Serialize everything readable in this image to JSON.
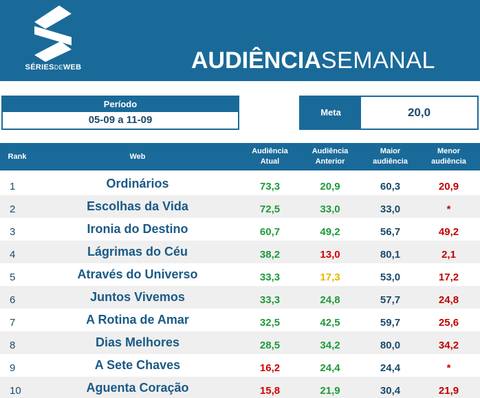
{
  "header": {
    "logo_text_1": "SÉRIES",
    "logo_text_2": "DE",
    "logo_text_3": "WEB",
    "title_bold": "AUDIÊNCIA",
    "title_light": "SEMANAL",
    "background_color": "#1a6a99"
  },
  "periodo": {
    "label": "Período",
    "value": "05-09 a 11-09"
  },
  "meta": {
    "label": "Meta",
    "value": "20,0"
  },
  "table": {
    "columns": {
      "rank": "Rank",
      "web": "Web",
      "atual_1": "Audiência",
      "atual_2": "Atual",
      "anterior_1": "Audiência",
      "anterior_2": "Anterior",
      "maior_1": "Maior",
      "maior_2": "audiência",
      "menor_1": "Menor",
      "menor_2": "audiência"
    },
    "rows": [
      {
        "rank": "1",
        "web": "Ordinários",
        "atual": "73,3",
        "atual_color": "green",
        "anterior": "20,9",
        "anterior_color": "green",
        "maior": "60,3",
        "menor": "20,9"
      },
      {
        "rank": "2",
        "web": "Escolhas da Vida",
        "atual": "72,5",
        "atual_color": "green",
        "anterior": "33,0",
        "anterior_color": "green",
        "maior": "33,0",
        "menor": "*"
      },
      {
        "rank": "3",
        "web": "Ironia do Destino",
        "atual": "60,7",
        "atual_color": "green",
        "anterior": "49,2",
        "anterior_color": "green",
        "maior": "56,7",
        "menor": "49,2"
      },
      {
        "rank": "4",
        "web": "Lágrimas do Céu",
        "atual": "38,2",
        "atual_color": "green",
        "anterior": "13,0",
        "anterior_color": "red",
        "maior": "80,1",
        "menor": "2,1"
      },
      {
        "rank": "5",
        "web": "Através do Universo",
        "atual": "33,3",
        "atual_color": "green",
        "anterior": "17,3",
        "anterior_color": "yellow",
        "maior": "53,0",
        "menor": "17,2"
      },
      {
        "rank": "6",
        "web": "Juntos Vivemos",
        "atual": "33,3",
        "atual_color": "green",
        "anterior": "24,8",
        "anterior_color": "green",
        "maior": "57,7",
        "menor": "24,8"
      },
      {
        "rank": "7",
        "web": "A Rotina de Amar",
        "atual": "32,5",
        "atual_color": "green",
        "anterior": "42,5",
        "anterior_color": "green",
        "maior": "59,7",
        "menor": "25,6"
      },
      {
        "rank": "8",
        "web": "Dias Melhores",
        "atual": "28,5",
        "atual_color": "green",
        "anterior": "34,2",
        "anterior_color": "green",
        "maior": "80,0",
        "menor": "34,2"
      },
      {
        "rank": "9",
        "web": "A Sete Chaves",
        "atual": "16,2",
        "atual_color": "red",
        "anterior": "24,4",
        "anterior_color": "green",
        "maior": "24,4",
        "menor": "*"
      },
      {
        "rank": "10",
        "web": "Aguenta Coração",
        "atual": "15,8",
        "atual_color": "red",
        "anterior": "21,9",
        "anterior_color": "green",
        "maior": "30,4",
        "menor": "21,9"
      }
    ]
  }
}
